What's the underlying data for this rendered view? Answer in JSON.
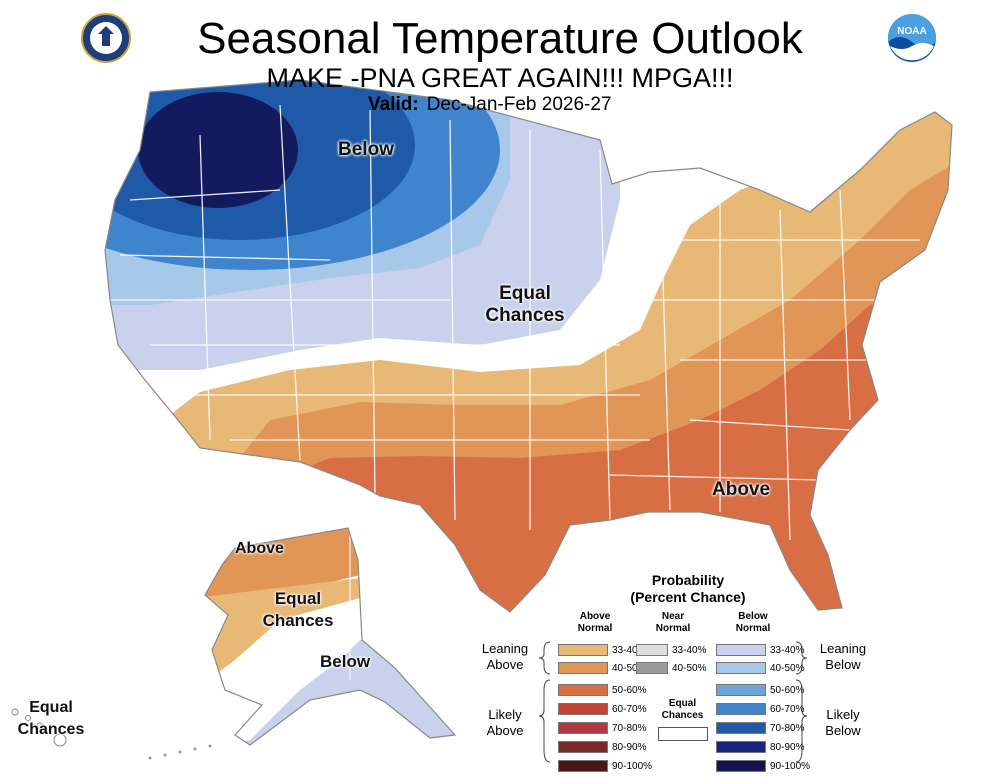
{
  "header": {
    "title": "Seasonal Temperature Outlook",
    "subtitle": "MAKE -PNA GREAT AGAIN!!! MPGA!!!",
    "valid_label": "Valid:",
    "valid_value": "Dec-Jan-Feb 2026-27"
  },
  "logos": {
    "left": "commerce-seal-icon",
    "right": "noaa-logo-icon",
    "noaa_text": "NOAA"
  },
  "map_labels": {
    "conus_below": "Below",
    "conus_equal_1": "Equal",
    "conus_equal_2": "Chances",
    "conus_above": "Above",
    "ak_above": "Above",
    "ak_equal_1": "Equal",
    "ak_equal_2": "Chances",
    "ak_below": "Below",
    "hi_equal_1": "Equal",
    "hi_equal_2": "Chances"
  },
  "colors": {
    "below_33_40": "#c9d1ec",
    "below_40_50": "#a8c8ea",
    "below_50_60": "#6ea6dc",
    "below_60_70": "#3f84cc",
    "below_70_80": "#1f5aa8",
    "below_80_90": "#1a237e",
    "below_90_100": "#141450",
    "above_33_40": "#e8b877",
    "above_40_50": "#e19658",
    "above_50_60": "#d86e44",
    "above_60_70": "#c14434",
    "above_70_80": "#b03a42",
    "above_80_90": "#7a2a2a",
    "above_90_100": "#4a1818",
    "near_33_40": "#dedede",
    "near_40_50": "#9b9b9b",
    "state_lines": "#ffffff",
    "coast": "#888888"
  },
  "legend": {
    "title_1": "Probability",
    "title_2": "(Percent Chance)",
    "col_above_1": "Above",
    "col_above_2": "Normal",
    "col_near_1": "Near",
    "col_near_2": "Normal",
    "col_below_1": "Below",
    "col_below_2": "Normal",
    "leaning_above_1": "Leaning",
    "leaning_above_2": "Above",
    "likely_above_1": "Likely",
    "likely_above_2": "Above",
    "leaning_below_1": "Leaning",
    "leaning_below_2": "Below",
    "likely_below_1": "Likely",
    "likely_below_2": "Below",
    "equal_1": "Equal",
    "equal_2": "Chances",
    "above_rows": [
      "33-40%",
      "40-50%",
      "50-60%",
      "60-70%",
      "70-80%",
      "80-90%",
      "90-100%"
    ],
    "near_rows": [
      "33-40%",
      "40-50%"
    ],
    "below_rows": [
      "33-40%",
      "40-50%",
      "50-60%",
      "60-70%",
      "70-80%",
      "80-90%",
      "90-100%"
    ]
  }
}
